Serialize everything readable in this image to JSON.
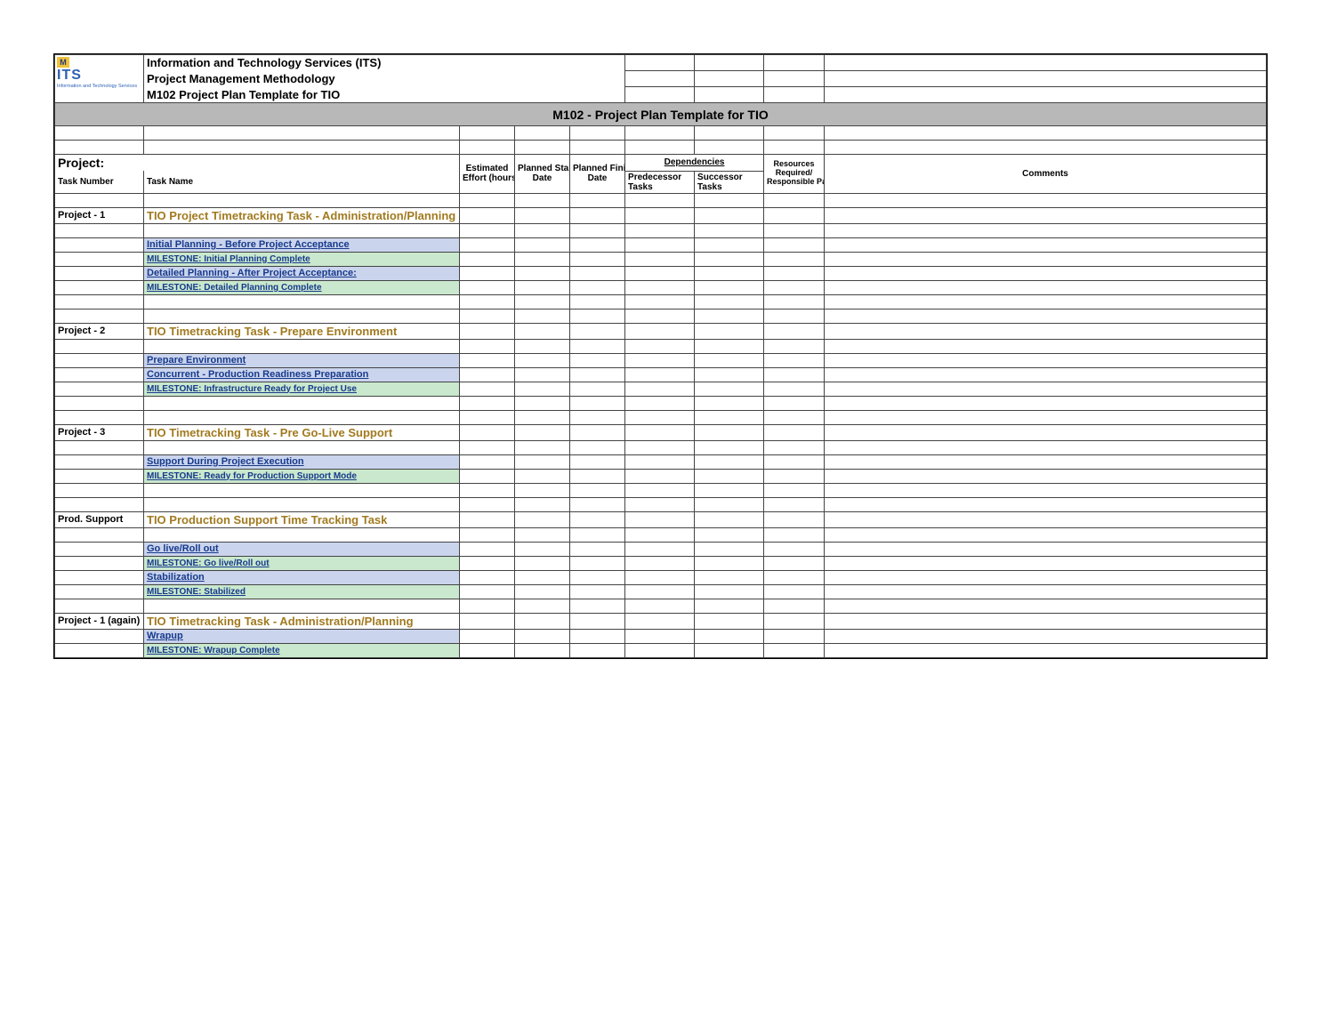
{
  "colors": {
    "titlebar_bg": "#b8b8b8",
    "subtask_bg": "#cad4ed",
    "milestone_bg": "#c9e8cd",
    "phase_color": "#a17a1f",
    "link_color": "#173a8c",
    "border": "#444444"
  },
  "header": {
    "logo": {
      "letter": "M",
      "brand": "ITS",
      "subtitle": "Information and Technology Services"
    },
    "line1": "Information and Technology Services (ITS)",
    "line2": "Project Management Methodology",
    "line3": "M102 Project Plan Template for TIO"
  },
  "title_bar": "M102 - Project Plan Template for TIO",
  "columns": {
    "project_label": "Project:",
    "task_number": "Task Number",
    "task_name": "Task Name",
    "effort": "Estimated Effort (hours)",
    "start": "Planned Start Date",
    "finish": "Planned Finish Date",
    "deps": "Dependencies",
    "pred": "Predecessor Tasks",
    "succ": "Successor Tasks",
    "res": "Resources Required/ Responsible Parties",
    "comments": "Comments"
  },
  "sections": [
    {
      "task_number": "Project - 1",
      "phase": "TIO Project Timetracking Task - Administration/Planning",
      "rows": [
        {
          "type": "subtask",
          "label": "Initial Planning - Before Project Acceptance"
        },
        {
          "type": "milestone",
          "label": "MILESTONE: Initial Planning Complete"
        },
        {
          "type": "subtask",
          "label": "Detailed Planning - After Project Acceptance:"
        },
        {
          "type": "milestone",
          "label": "MILESTONE: Detailed Planning Complete"
        }
      ]
    },
    {
      "task_number": "Project - 2",
      "phase": "TIO Timetracking Task - Prepare Environment",
      "rows": [
        {
          "type": "subtask",
          "label": "Prepare Environment"
        },
        {
          "type": "subtask",
          "label": "Concurrent - Production Readiness Preparation"
        },
        {
          "type": "milestone",
          "label": "MILESTONE: Infrastructure Ready for Project Use"
        }
      ]
    },
    {
      "task_number": "Project - 3",
      "phase": "TIO Timetracking Task - Pre Go-Live Support",
      "rows": [
        {
          "type": "subtask",
          "label": "Support During Project Execution"
        },
        {
          "type": "milestone",
          "label": "MILESTONE: Ready for Production Support Mode"
        }
      ]
    },
    {
      "task_number": "Prod. Support",
      "phase": "TIO Production Support Time Tracking Task",
      "rows": [
        {
          "type": "subtask",
          "label": "Go live/Roll out"
        },
        {
          "type": "milestone",
          "label": "MILESTONE: Go live/Roll out"
        },
        {
          "type": "subtask",
          "label": "Stabilization"
        },
        {
          "type": "milestone",
          "label": "MILESTONE: Stabilized"
        }
      ]
    },
    {
      "task_number": "Project - 1 (again)",
      "phase": "TIO Timetracking Task - Administration/Planning",
      "rows": [
        {
          "type": "subtask",
          "label": "Wrapup"
        },
        {
          "type": "milestone",
          "label": "MILESTONE: Wrapup Complete"
        }
      ]
    }
  ]
}
